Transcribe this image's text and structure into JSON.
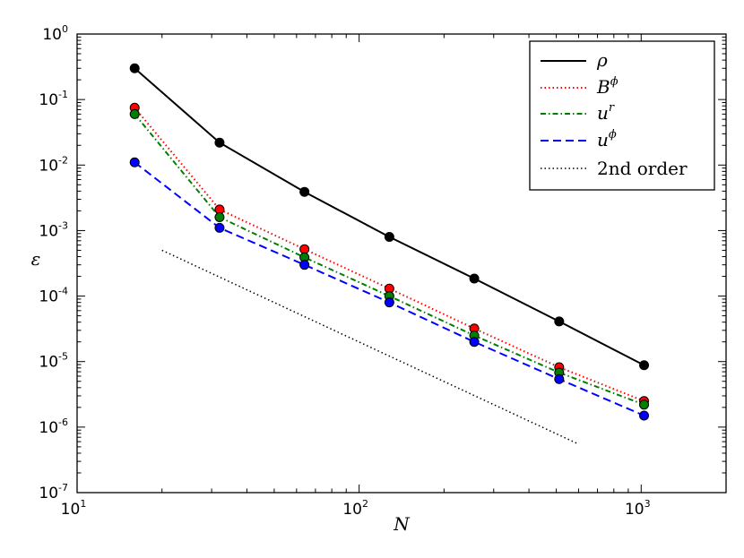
{
  "chart_data": {
    "type": "line",
    "xscale": "log",
    "yscale": "log",
    "xlim": [
      10,
      2000
    ],
    "ylim": [
      1e-07,
      1
    ],
    "xlabel": "N",
    "ylabel": "ε",
    "x_ticks": [
      {
        "base": "10",
        "exp": "1"
      },
      {
        "base": "10",
        "exp": "2"
      },
      {
        "base": "10",
        "exp": "3"
      }
    ],
    "y_ticks": [
      {
        "base": "10",
        "exp": "0"
      },
      {
        "base": "10",
        "exp": "-1"
      },
      {
        "base": "10",
        "exp": "-2"
      },
      {
        "base": "10",
        "exp": "-3"
      },
      {
        "base": "10",
        "exp": "-4"
      },
      {
        "base": "10",
        "exp": "-5"
      },
      {
        "base": "10",
        "exp": "-6"
      },
      {
        "base": "10",
        "exp": "-7"
      }
    ],
    "x": [
      16,
      32,
      64,
      128,
      256,
      512,
      1024
    ],
    "series": [
      {
        "name": "rho",
        "label": "ρ",
        "sup": "",
        "color": "#000000",
        "marker_color": "#000000",
        "dash": "",
        "values": [
          0.3,
          0.022,
          0.0039,
          0.0008,
          0.000185,
          4.1e-05,
          8.8e-06
        ]
      },
      {
        "name": "B-phi",
        "label": "B",
        "sup": "ϕ",
        "color": "#ff0000",
        "marker_color": "#ff0000",
        "dash": "1.5,3",
        "values": [
          0.075,
          0.0021,
          0.00052,
          0.00013,
          3.2e-05,
          8.2e-06,
          2.5e-06
        ]
      },
      {
        "name": "u-r",
        "label": "u",
        "sup": "r",
        "color": "#008000",
        "marker_color": "#008000",
        "dash": "6,3,1.5,3",
        "values": [
          0.06,
          0.0016,
          0.00039,
          0.0001,
          2.5e-05,
          6.8e-06,
          2.2e-06
        ]
      },
      {
        "name": "u-phi",
        "label": "u",
        "sup": "ϕ",
        "color": "#0000ff",
        "marker_color": "#0000ff",
        "dash": "9,5",
        "values": [
          0.011,
          0.0011,
          0.0003,
          8e-05,
          2e-05,
          5.4e-06,
          1.5e-06
        ]
      }
    ],
    "reference": {
      "name": "2nd-order",
      "label": "2nd order",
      "color": "#000000",
      "dash": "1.5,3",
      "x": [
        20,
        600
      ],
      "values": [
        0.0005,
        5.5e-07
      ]
    },
    "legend_position": "top-right"
  }
}
